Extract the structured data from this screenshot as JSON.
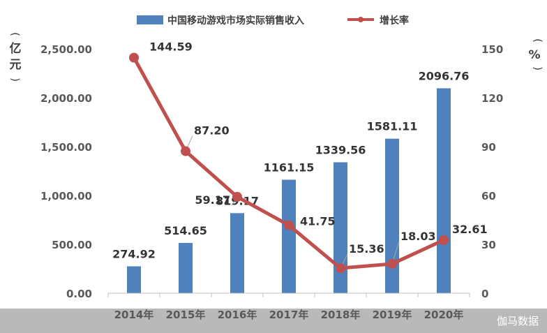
{
  "chart_data": {
    "type": "bar+line",
    "categories": [
      "2014年",
      "2015年",
      "2016年",
      "2017年",
      "2018年",
      "2019年",
      "2020年"
    ],
    "series": [
      {
        "name": "中国移动游戏市场实际销售收入",
        "type": "bar",
        "axis": "left",
        "color": "#4F81BD",
        "values": [
          274.92,
          514.65,
          819.17,
          1161.15,
          1339.56,
          1581.11,
          2096.76
        ],
        "labels": [
          "274.92",
          "514.65",
          "819.17",
          "1161.15",
          "1339.56",
          "1581.11",
          "2096.76"
        ]
      },
      {
        "name": "增长率",
        "type": "line",
        "axis": "right",
        "color": "#C0504D",
        "values": [
          144.59,
          87.2,
          59.17,
          41.75,
          15.36,
          18.03,
          32.61
        ],
        "labels": [
          "144.59",
          "87.20",
          "59.17",
          "41.75",
          "15.36",
          "18.03",
          "32.61"
        ]
      }
    ],
    "left_axis": {
      "unit": [
        "亿",
        "元"
      ],
      "ylim": [
        0,
        2500
      ],
      "ticks": [
        0,
        500,
        1000,
        1500,
        2000,
        2500
      ],
      "tick_labels": [
        "0.00",
        "500.00",
        "1,000.00",
        "1,500.00",
        "2,000.00",
        "2,500.00"
      ]
    },
    "right_axis": {
      "unit": "%",
      "ylim": [
        0,
        150
      ],
      "ticks": [
        0,
        30,
        60,
        90,
        120,
        150
      ],
      "tick_labels": [
        "0",
        "30",
        "60",
        "90",
        "120",
        "150"
      ]
    },
    "legend": {
      "position": "top"
    },
    "grid": false
  },
  "watermark": "伽马数据"
}
